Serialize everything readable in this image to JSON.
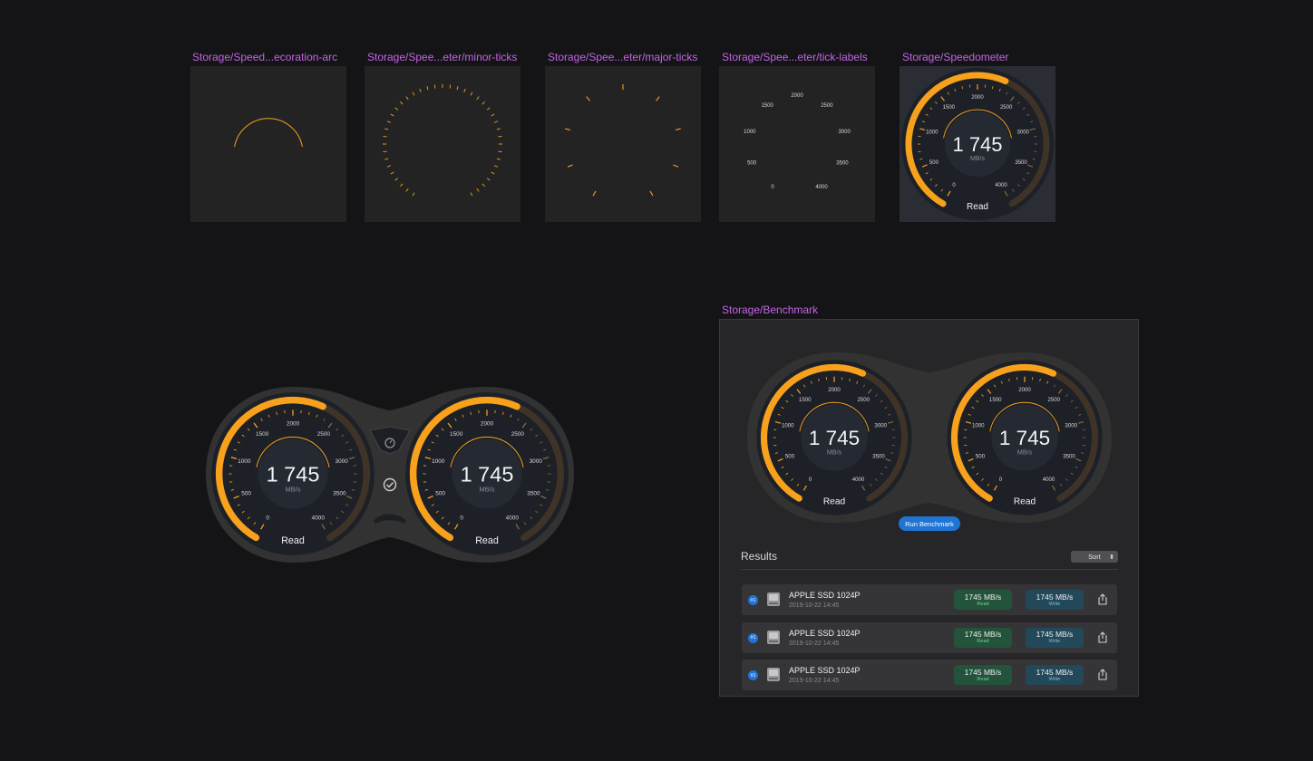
{
  "labels": {
    "decoration_arc": "Storage/Speed...ecoration-arc",
    "minor_ticks": "Storage/Spee...eter/minor-ticks",
    "major_ticks": "Storage/Spee...eter/major-ticks",
    "tick_labels": "Storage/Spee...eter/tick-labels",
    "speedometer": "Storage/Speedometer",
    "benchmark": "Storage/Benchmark"
  },
  "gauge": {
    "value": "1745",
    "value_display": "1 745",
    "unit": "MB/s",
    "mode": "Read",
    "ticks": [
      "0",
      "500",
      "1000",
      "1500",
      "2000",
      "2500",
      "3000",
      "3500",
      "4000"
    ],
    "max": 4000,
    "accent": "#f7a11c",
    "track": "#3e3326"
  },
  "benchmark": {
    "run_label": "Run Benchmark",
    "results_title": "Results",
    "sort_label": "Sort",
    "rows": [
      {
        "rank": "#1",
        "name": "APPLE SSD 1024P",
        "date": "2019-10-22 14:45",
        "read": "1745 MB/s",
        "read_label": "Read",
        "write": "1745 MB/s",
        "write_label": "Write"
      },
      {
        "rank": "#1",
        "name": "APPLE SSD 1024P",
        "date": "2019-10-22 14:45",
        "read": "1745 MB/s",
        "read_label": "Read",
        "write": "1745 MB/s",
        "write_label": "Write"
      },
      {
        "rank": "#1",
        "name": "APPLE SSD 1024P",
        "date": "2019-10-22 14:45",
        "read": "1745 MB/s",
        "read_label": "Read",
        "write": "1745 MB/s",
        "write_label": "Write"
      }
    ]
  },
  "icons": {
    "center_top": "gauge-knob-icon",
    "center_mid": "checkmark-circle-icon",
    "disk": "hard-drive-icon",
    "share": "share-icon"
  }
}
